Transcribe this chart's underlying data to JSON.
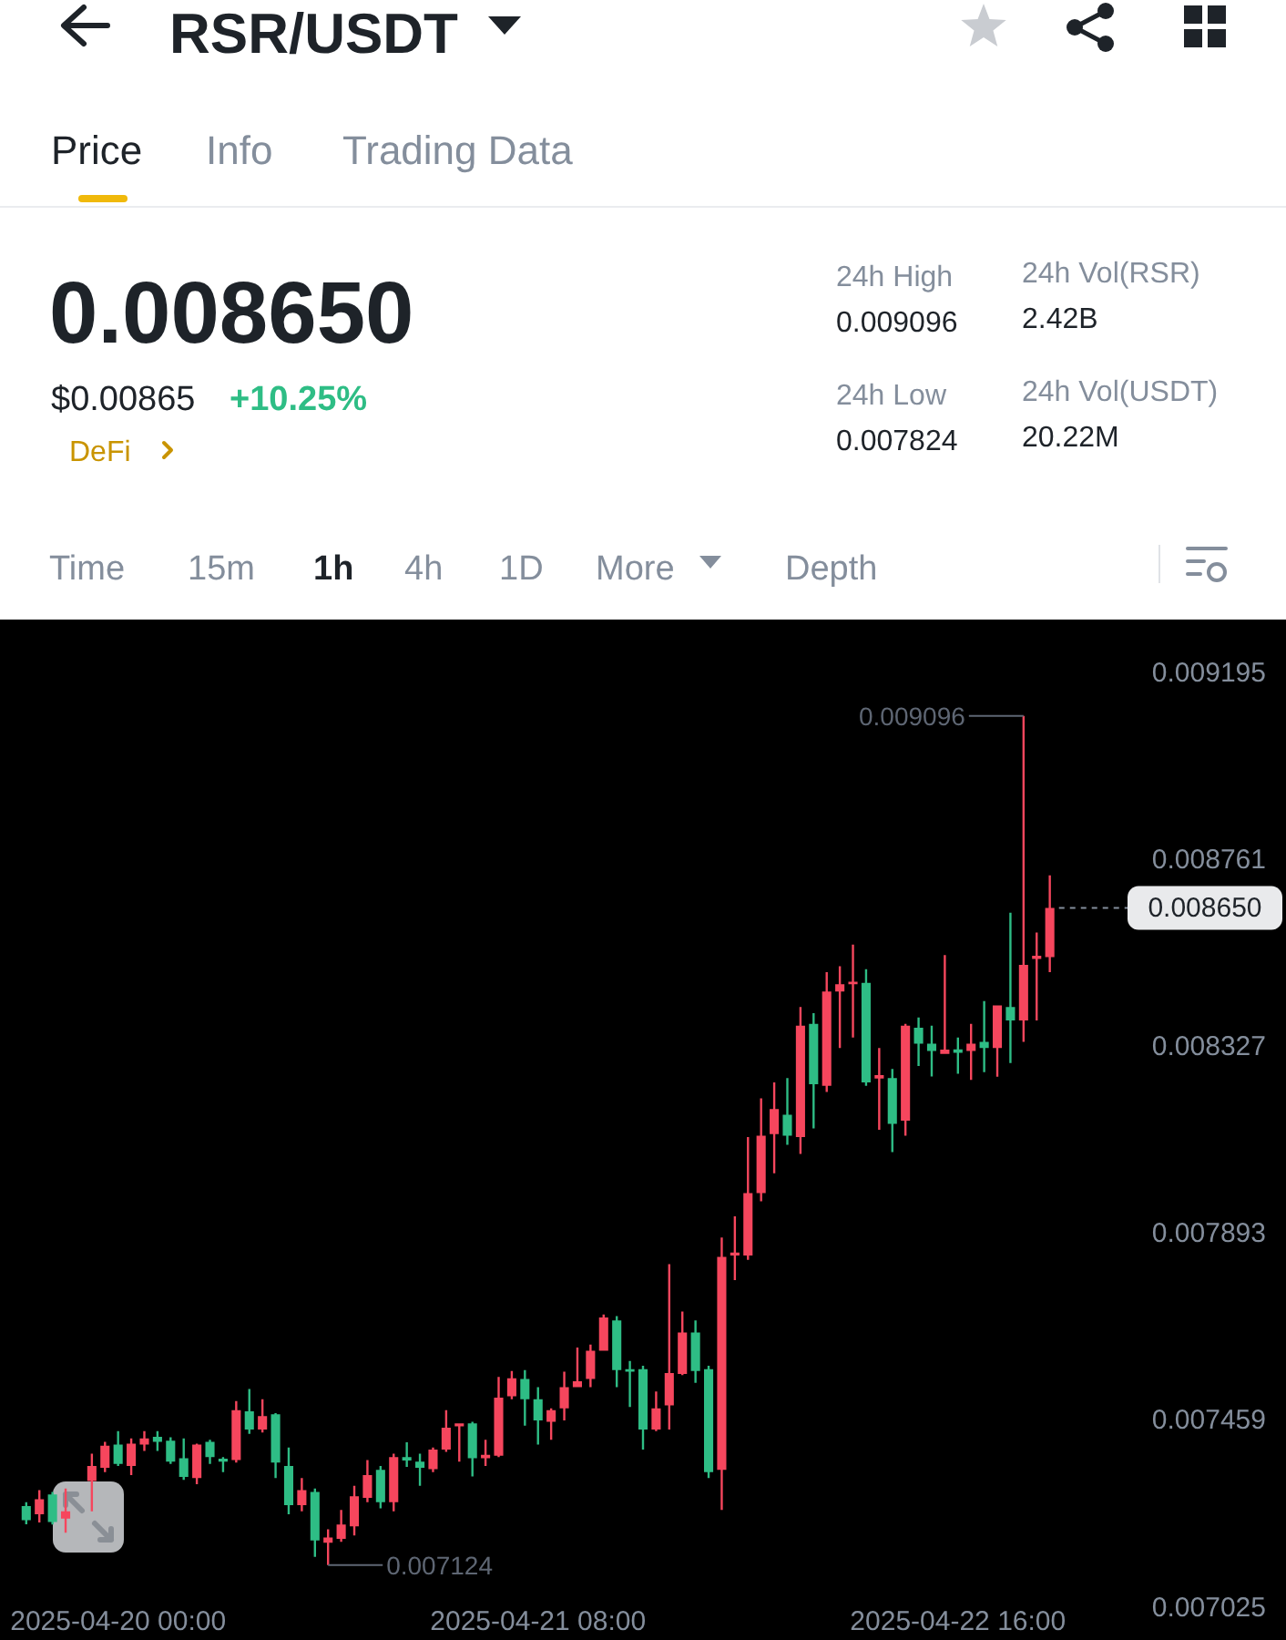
{
  "chart_data": [
    {
      "type": "other",
      "title": "RSR/USDT",
      "annotations": [
        "Price",
        "Info",
        "Trading Data",
        "0.008650",
        "$0.00865",
        "+10.25%",
        "DeFi",
        "24h High",
        "0.009096",
        "24h Vol(RSR)",
        "2.42B",
        "24h Low",
        "0.007824",
        "24h Vol(USDT)",
        "20.22M",
        "Time",
        "15m",
        "1h",
        "4h",
        "1D",
        "More",
        "Depth"
      ]
    },
    {
      "type": "candlestick",
      "x": [
        "2025-04-19T17:00",
        "2025-04-19T18:00",
        "2025-04-19T19:00",
        "2025-04-19T20:00",
        "2025-04-19T22:00",
        "2025-04-19T23:00",
        "2025-04-20T00:00",
        "2025-04-20T01:00",
        "2025-04-20T02:00",
        "2025-04-20T03:00",
        "2025-04-20T04:00",
        "2025-04-20T05:00",
        "2025-04-20T06:00",
        "2025-04-20T07:00",
        "2025-04-20T08:00",
        "2025-04-20T09:00",
        "2025-04-20T10:00",
        "2025-04-20T11:00",
        "2025-04-20T12:00",
        "2025-04-20T13:00",
        "2025-04-20T14:00",
        "2025-04-20T15:00",
        "2025-04-20T16:00",
        "2025-04-20T17:00",
        "2025-04-20T18:00",
        "2025-04-20T19:00",
        "2025-04-20T20:00",
        "2025-04-20T21:00",
        "2025-04-20T22:00",
        "2025-04-20T23:00",
        "2025-04-21T00:00",
        "2025-04-21T01:00",
        "2025-04-21T02:00",
        "2025-04-21T03:00",
        "2025-04-21T04:00",
        "2025-04-21T05:00",
        "2025-04-21T06:00",
        "2025-04-21T07:00",
        "2025-04-21T08:00",
        "2025-04-21T09:00",
        "2025-04-21T10:00",
        "2025-04-21T11:00",
        "2025-04-21T12:00",
        "2025-04-21T13:00",
        "2025-04-21T14:00",
        "2025-04-21T15:00",
        "2025-04-21T16:00",
        "2025-04-21T17:00",
        "2025-04-21T18:00",
        "2025-04-21T19:00",
        "2025-04-21T20:00",
        "2025-04-21T21:00",
        "2025-04-21T22:00",
        "2025-04-21T23:00",
        "2025-04-22T00:00",
        "2025-04-22T01:00",
        "2025-04-22T02:00",
        "2025-04-22T03:00",
        "2025-04-22T04:00",
        "2025-04-22T05:00",
        "2025-04-22T06:00",
        "2025-04-22T07:00",
        "2025-04-22T08:00",
        "2025-04-22T09:00",
        "2025-04-22T10:00",
        "2025-04-22T11:00",
        "2025-04-22T12:00",
        "2025-04-22T13:00",
        "2025-04-22T14:00",
        "2025-04-22T15:00",
        "2025-04-22T16:00",
        "2025-04-22T17:00",
        "2025-04-22T18:00",
        "2025-04-22T19:00",
        "2025-04-22T20:00",
        "2025-04-22T21:00",
        "2025-04-22T22:00",
        "2025-04-22T23:00"
      ],
      "ohlc": [
        [
          0.007261,
          0.00727,
          0.007219,
          0.007228
        ],
        [
          0.007242,
          0.007298,
          0.007223,
          0.007277
        ],
        [
          0.007288,
          0.007294,
          0.007218,
          0.007224
        ],
        [
          0.007232,
          0.007302,
          0.007199,
          0.007249
        ],
        [
          0.007319,
          0.007383,
          0.007249,
          0.007354
        ],
        [
          0.00735,
          0.00741,
          0.00734,
          0.007401
        ],
        [
          0.007404,
          0.007435,
          0.007354,
          0.007359
        ],
        [
          0.007354,
          0.007418,
          0.007333,
          0.007406
        ],
        [
          0.007404,
          0.007435,
          0.007389,
          0.007418
        ],
        [
          0.007422,
          0.007435,
          0.007389,
          0.00741
        ],
        [
          0.007413,
          0.007421,
          0.007359,
          0.007364
        ],
        [
          0.007372,
          0.007418,
          0.007322,
          0.007329
        ],
        [
          0.007326,
          0.007406,
          0.007312,
          0.007404
        ],
        [
          0.00741,
          0.007415,
          0.007359,
          0.007375
        ],
        [
          0.007371,
          0.007375,
          0.00734,
          0.007364
        ],
        [
          0.007368,
          0.007505,
          0.007362,
          0.007484
        ],
        [
          0.007481,
          0.007533,
          0.007429,
          0.007439
        ],
        [
          0.007439,
          0.007509,
          0.007432,
          0.00747
        ],
        [
          0.007474,
          0.007477,
          0.007326,
          0.007362
        ],
        [
          0.007354,
          0.007397,
          0.007242,
          0.007263
        ],
        [
          0.007263,
          0.007326,
          0.007249,
          0.007298
        ],
        [
          0.007294,
          0.007302,
          0.007143,
          0.007181
        ],
        [
          0.007176,
          0.007207,
          0.007124,
          0.007188
        ],
        [
          0.007185,
          0.007252,
          0.007178,
          0.007218
        ],
        [
          0.007214,
          0.007308,
          0.007193,
          0.007284
        ],
        [
          0.00728,
          0.007368,
          0.00727,
          0.007333
        ],
        [
          0.007345,
          0.007354,
          0.007256,
          0.00727
        ],
        [
          0.00727,
          0.007383,
          0.007249,
          0.007375
        ],
        [
          0.007375,
          0.007409,
          0.007352,
          0.007367
        ],
        [
          0.007364,
          0.007383,
          0.007308,
          0.00735
        ],
        [
          0.007347,
          0.007397,
          0.00734,
          0.007392
        ],
        [
          0.007392,
          0.007484,
          0.007387,
          0.007443
        ],
        [
          0.007446,
          0.007453,
          0.007364,
          0.007453
        ],
        [
          0.007453,
          0.007457,
          0.00733,
          0.007372
        ],
        [
          0.007372,
          0.007415,
          0.007354,
          0.00738
        ],
        [
          0.007378,
          0.007561,
          0.007375,
          0.007513
        ],
        [
          0.007516,
          0.007575,
          0.007509,
          0.007558
        ],
        [
          0.007556,
          0.007577,
          0.007448,
          0.007509
        ],
        [
          0.007509,
          0.007537,
          0.007404,
          0.00746
        ],
        [
          0.007457,
          0.007488,
          0.007415,
          0.007484
        ],
        [
          0.007488,
          0.007573,
          0.00746,
          0.007537
        ],
        [
          0.007537,
          0.007629,
          0.007537,
          0.007551
        ],
        [
          0.007556,
          0.007636,
          0.007537,
          0.007622
        ],
        [
          0.007622,
          0.007706,
          0.007622,
          0.007699
        ],
        [
          0.007692,
          0.007702,
          0.007537,
          0.007577
        ],
        [
          0.007579,
          0.007598,
          0.007491,
          0.007573
        ],
        [
          0.007579,
          0.007587,
          0.007392,
          0.007439
        ],
        [
          0.007439,
          0.007527,
          0.007435,
          0.007488
        ],
        [
          0.007495,
          0.007823,
          0.007439,
          0.00757
        ],
        [
          0.007568,
          0.007713,
          0.007565,
          0.007664
        ],
        [
          0.007664,
          0.007692,
          0.007547,
          0.007575
        ],
        [
          0.007579,
          0.007587,
          0.007326,
          0.00734
        ],
        [
          0.007345,
          0.007885,
          0.007252,
          0.00784
        ],
        [
          0.007843,
          0.007934,
          0.007786,
          0.00785
        ],
        [
          0.007843,
          0.008118,
          0.007833,
          0.007988
        ],
        [
          0.007988,
          0.008208,
          0.007969,
          0.008121
        ],
        [
          0.008125,
          0.008245,
          0.008034,
          0.008183
        ],
        [
          0.00817,
          0.008255,
          0.0081,
          0.008121
        ],
        [
          0.008118,
          0.00842,
          0.008079,
          0.008377
        ],
        [
          0.008381,
          0.008406,
          0.008138,
          0.008241
        ],
        [
          0.008237,
          0.008501,
          0.008223,
          0.008456
        ],
        [
          0.008456,
          0.008515,
          0.008325,
          0.008473
        ],
        [
          0.008473,
          0.008565,
          0.008349,
          0.008479
        ],
        [
          0.008476,
          0.008508,
          0.008237,
          0.008245
        ],
        [
          0.008254,
          0.008325,
          0.008135,
          0.008262
        ],
        [
          0.008255,
          0.008276,
          0.008083,
          0.008149
        ],
        [
          0.008156,
          0.008381,
          0.008121,
          0.008377
        ],
        [
          0.008372,
          0.008396,
          0.008283,
          0.008335
        ],
        [
          0.008335,
          0.008377,
          0.008259,
          0.008318
        ],
        [
          0.008311,
          0.008541,
          0.008311,
          0.008321
        ],
        [
          0.008322,
          0.008349,
          0.008265,
          0.008314
        ],
        [
          0.008318,
          0.008381,
          0.008251,
          0.008335
        ],
        [
          0.008339,
          0.008434,
          0.008269,
          0.008325
        ],
        [
          0.008325,
          0.008424,
          0.008258,
          0.008424
        ],
        [
          0.00842,
          0.008639,
          0.00829,
          0.008389
        ],
        [
          0.008389,
          0.009096,
          0.008339,
          0.008518
        ],
        [
          0.008532,
          0.008593,
          0.008389,
          0.008539
        ],
        [
          0.008536,
          0.008726,
          0.008501,
          0.00865
        ]
      ],
      "colors": [
        "#2ebd85",
        "#f6465d",
        "#2ebd85",
        "#f6465d",
        "#f6465d",
        "#f6465d",
        "#2ebd85",
        "#f6465d",
        "#f6465d",
        "#2ebd85",
        "#2ebd85",
        "#2ebd85",
        "#f6465d",
        "#2ebd85",
        "#2ebd85",
        "#f6465d",
        "#2ebd85",
        "#f6465d",
        "#2ebd85",
        "#2ebd85",
        "#f6465d",
        "#2ebd85",
        "#f6465d",
        "#f6465d",
        "#f6465d",
        "#f6465d",
        "#2ebd85",
        "#f6465d",
        "#2ebd85",
        "#2ebd85",
        "#f6465d",
        "#f6465d",
        "#f6465d",
        "#2ebd85",
        "#f6465d",
        "#f6465d",
        "#f6465d",
        "#2ebd85",
        "#2ebd85",
        "#f6465d",
        "#f6465d",
        "#f6465d",
        "#f6465d",
        "#f6465d",
        "#2ebd85",
        "#2ebd85",
        "#2ebd85",
        "#f6465d",
        "#f6465d",
        "#f6465d",
        "#2ebd85",
        "#2ebd85",
        "#f6465d",
        "#f6465d",
        "#f6465d",
        "#f6465d",
        "#f6465d",
        "#2ebd85",
        "#f6465d",
        "#2ebd85",
        "#f6465d",
        "#f6465d",
        "#f6465d",
        "#2ebd85",
        "#f6465d",
        "#2ebd85",
        "#f6465d",
        "#2ebd85",
        "#2ebd85",
        "#f6465d",
        "#2ebd85",
        "#f6465d",
        "#2ebd85",
        "#f6465d",
        "#2ebd85",
        "#f6465d",
        "#f6465d",
        "#f6465d"
      ],
      "xlim": [
        "2025-04-19T15:00",
        "2025-04-23T17:00"
      ],
      "xticks": [
        {
          "value": "2025-04-20T00:00",
          "label": "2025-04-20 00:00"
        },
        {
          "value": "2025-04-21T08:00",
          "label": "2025-04-21 08:00"
        },
        {
          "value": "2025-04-22T16:00",
          "label": "2025-04-22 16:00"
        }
      ],
      "ylim": [
        0.00695,
        0.00932
      ],
      "yticks": [
        0.009195,
        0.008761,
        0.008327,
        0.007893,
        0.007459,
        0.007025
      ],
      "ref_lines": [
        {
          "axis": "y",
          "value": 0.00865,
          "label": "0.008650",
          "line_style": "dashed",
          "color": "#848e9c"
        }
      ],
      "annotations": [
        {
          "text": "0.009096",
          "x": "2025-04-22T21:00",
          "y": 0.009096
        },
        {
          "text": "0.007124",
          "x": "2025-04-20T16:00",
          "y": 0.007124
        }
      ]
    }
  ]
}
